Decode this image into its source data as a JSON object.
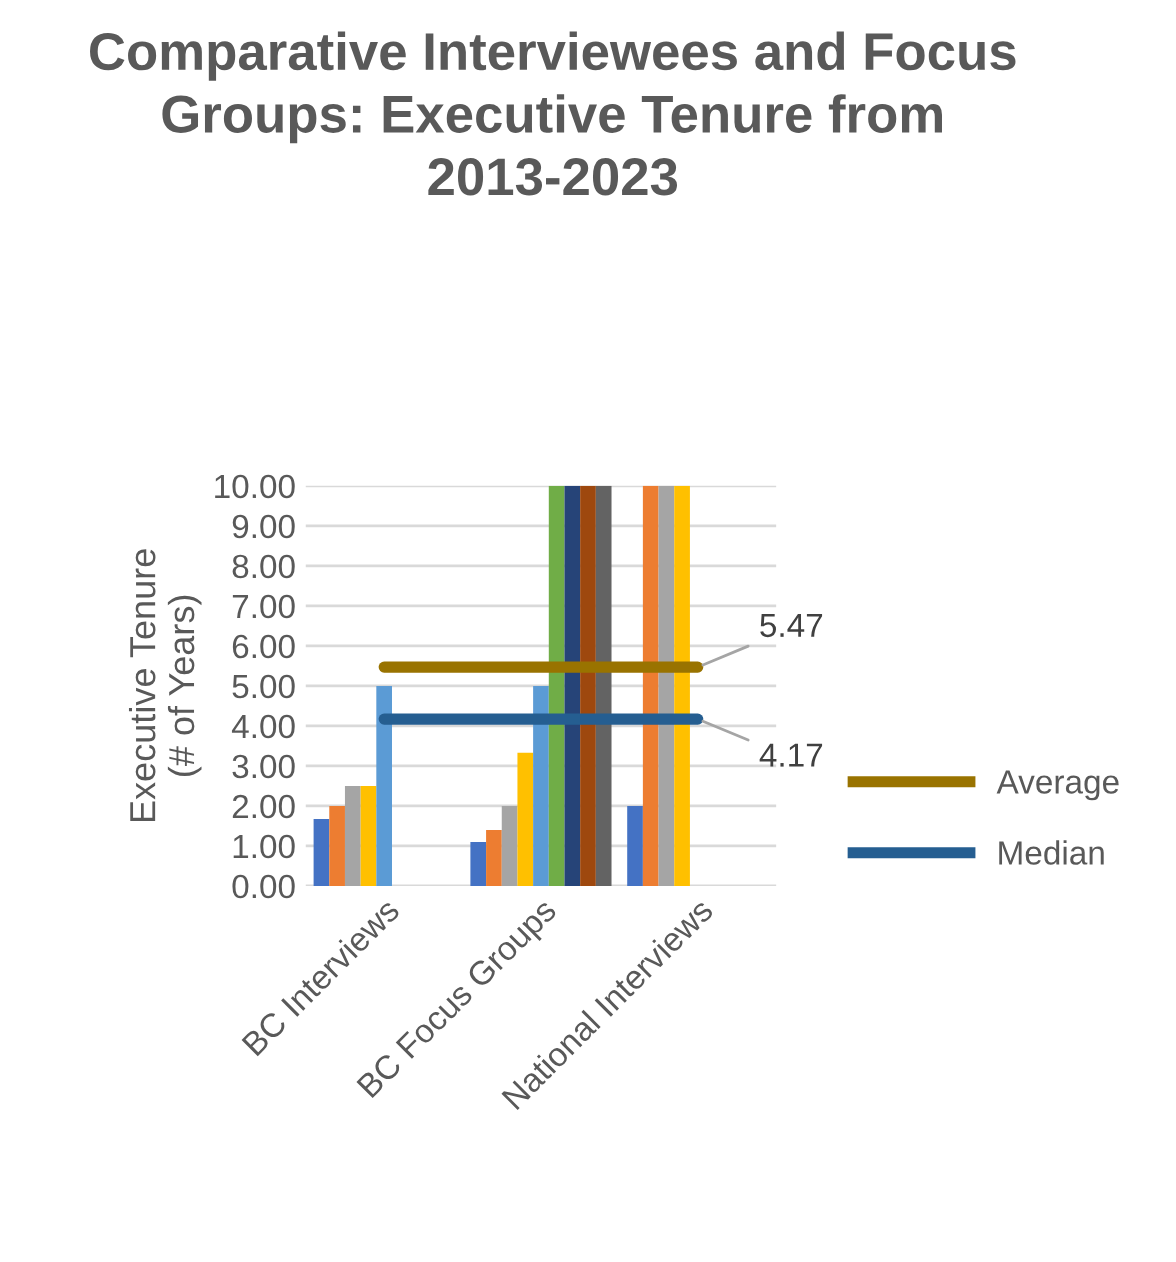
{
  "chart_data": {
    "type": "bar",
    "title": "Comparative Interviewees and Focus Groups: Executive Tenure from 2013-2023",
    "ylabel": "Executive Tenure\n(# of Years)",
    "categories": [
      "BC Interviews",
      "BC Focus Groups",
      "National Interviews"
    ],
    "series": [
      {
        "color": "#4472c4",
        "values": [
          1.67,
          1.1,
          2.0
        ]
      },
      {
        "color": "#ed7d31",
        "values": [
          2.0,
          1.4,
          10.0
        ]
      },
      {
        "color": "#a5a5a5",
        "values": [
          2.5,
          2.0,
          10.0
        ]
      },
      {
        "color": "#ffc000",
        "values": [
          2.5,
          3.33,
          10.0
        ]
      },
      {
        "color": "#5b9bd5",
        "values": [
          5.0,
          5.0,
          null
        ]
      },
      {
        "color": "#70ad47",
        "values": [
          null,
          10.0,
          null
        ]
      },
      {
        "color": "#264478",
        "values": [
          null,
          10.0,
          null
        ]
      },
      {
        "color": "#9e480e",
        "values": [
          null,
          10.0,
          null
        ]
      },
      {
        "color": "#636363",
        "values": [
          null,
          10.0,
          null
        ]
      },
      {
        "type": "line",
        "name": "Average",
        "color": "#997300",
        "values": [
          5.47,
          5.47,
          5.47
        ],
        "value_labels": [
          null,
          null,
          "5.47"
        ]
      },
      {
        "type": "line",
        "name": "Median",
        "color": "#255e91",
        "values": [
          4.17,
          4.17,
          4.17
        ],
        "value_labels": [
          null,
          null,
          "4.17"
        ]
      }
    ],
    "ylim": [
      0,
      10
    ],
    "yticks": [
      {
        "value": 0,
        "label": "0.00"
      },
      {
        "value": 1,
        "label": "1.00"
      },
      {
        "value": 2,
        "label": "2.00"
      },
      {
        "value": 3,
        "label": "3.00"
      },
      {
        "value": 4,
        "label": "4.00"
      },
      {
        "value": 5,
        "label": "5.00"
      },
      {
        "value": 6,
        "label": "6.00"
      },
      {
        "value": 7,
        "label": "7.00"
      },
      {
        "value": 8,
        "label": "8.00"
      },
      {
        "value": 9,
        "label": "9.00"
      },
      {
        "value": 10,
        "label": "10.00"
      }
    ],
    "grid": "y",
    "legend": "right"
  }
}
